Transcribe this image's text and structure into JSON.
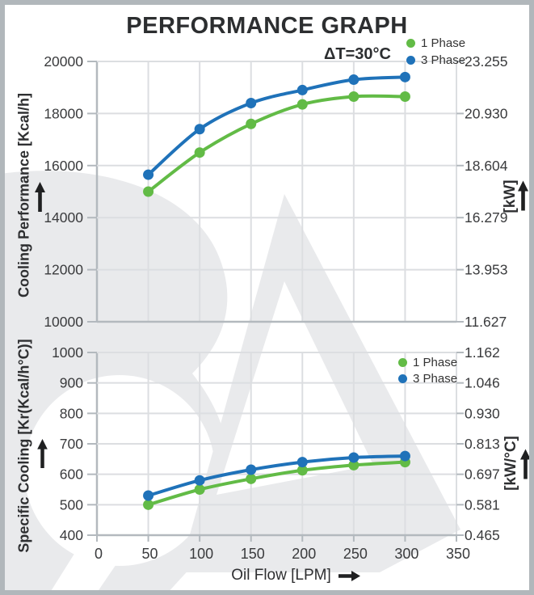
{
  "title": "PERFORMANCE GRAPH",
  "legend": {
    "items": [
      {
        "label": "1 Phase",
        "color": "#62bb46"
      },
      {
        "label": "3 Phase",
        "color": "#1f72b9"
      }
    ]
  },
  "icons": {
    "up_arrow": "↑",
    "right_arrow": "→"
  },
  "colors": {
    "phase1": "#62bb46",
    "phase3": "#1f72b9",
    "grid": "#dcdee1",
    "axis": "#b3b9be",
    "text": "#3a3b3d",
    "watermark": "#e9eaec",
    "frame_border": "#b1b7bb"
  },
  "chart_data": [
    {
      "type": "line",
      "title": "Cooling Performance vs Oil Flow",
      "annotation": "ΔT=30°C",
      "xlabel": "Oil Flow [LPM]",
      "ylabel_left": "Cooling Performance [Kcal/h]",
      "ylabel_right": "[kW]",
      "x": [
        50,
        100,
        150,
        200,
        250,
        300
      ],
      "series": [
        {
          "name": "1 Phase",
          "color": "#62bb46",
          "values": [
            15000,
            16500,
            17600,
            18350,
            18650,
            18650
          ]
        },
        {
          "name": "3 Phase",
          "color": "#1f72b9",
          "values": [
            15650,
            17400,
            18400,
            18900,
            19300,
            19400
          ]
        }
      ],
      "xlim": [
        0,
        350
      ],
      "x_ticks": [
        0,
        50,
        100,
        150,
        200,
        250,
        300,
        350
      ],
      "ylim": [
        10000,
        20000
      ],
      "y_ticks_left": [
        20000,
        18000,
        16000,
        14000,
        12000,
        10000
      ],
      "y_ticks_right": [
        "23.255",
        "20.930",
        "18.604",
        "16.279",
        "13.953",
        "11.627"
      ],
      "grid": true,
      "legend_position": "top-right-outside"
    },
    {
      "type": "line",
      "title": "Specific Cooling vs Oil Flow",
      "annotation": "",
      "xlabel": "Oil Flow [LPM]",
      "ylabel_left": "Specific Cooling [Kr(Kcal/h°C)]",
      "ylabel_right": "[kW/°C]",
      "x": [
        50,
        100,
        150,
        200,
        250,
        300
      ],
      "series": [
        {
          "name": "1 Phase",
          "color": "#62bb46",
          "values": [
            500,
            550,
            585,
            613,
            630,
            640
          ]
        },
        {
          "name": "3 Phase",
          "color": "#1f72b9",
          "values": [
            530,
            580,
            615,
            640,
            655,
            660
          ]
        }
      ],
      "xlim": [
        0,
        350
      ],
      "x_ticks": [
        0,
        50,
        100,
        150,
        200,
        250,
        300,
        350
      ],
      "ylim": [
        400,
        1000
      ],
      "y_ticks_left": [
        1000,
        900,
        800,
        700,
        600,
        500,
        400
      ],
      "y_ticks_right": [
        "1.162",
        "1.046",
        "0.930",
        "0.813",
        "0.697",
        "0.581",
        "0.465"
      ],
      "grid": true,
      "legend_position": "top-right-inside"
    }
  ]
}
